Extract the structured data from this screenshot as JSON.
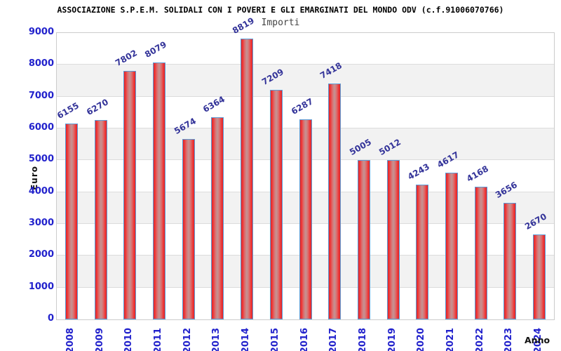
{
  "chart_data": {
    "type": "bar",
    "title": "ASSOCIAZIONE S.P.E.M. SOLIDALI CON I POVERI E GLI EMARGINATI DEL MONDO ODV (c.f.91006070766)",
    "subtitle": "Importi",
    "xlabel": "Anno",
    "ylabel": "Euro",
    "categories": [
      "2008",
      "2009",
      "2010",
      "2011",
      "2012",
      "2013",
      "2014",
      "2015",
      "2016",
      "2017",
      "2018",
      "2019",
      "2020",
      "2021",
      "2022",
      "2023",
      "2024"
    ],
    "values": [
      6155,
      6270,
      7802,
      8079,
      5674,
      6364,
      8819,
      7209,
      6287,
      7418,
      5005,
      5012,
      4243,
      4617,
      4168,
      3656,
      2670
    ],
    "ylim": [
      0,
      9000
    ],
    "ytick_step": 1000,
    "yticks": [
      "0",
      "1000",
      "2000",
      "3000",
      "4000",
      "5000",
      "6000",
      "7000",
      "8000",
      "9000"
    ],
    "grid": "horizontal-bands-alternating",
    "legend": "none",
    "value_labels": "above-bars-rotated",
    "colors": {
      "bar_edge": "#e02428",
      "bar_center": "#c59494",
      "bar_border": "#5b9bd5",
      "axis_label_blue": "#2222cc",
      "value_label_navy": "#333399",
      "band_gray": "#f2f2f2",
      "gridline": "#dcdcdc",
      "plot_border": "#cccccc",
      "title_color": "#000000",
      "subtitle_gray": "#444444"
    }
  }
}
